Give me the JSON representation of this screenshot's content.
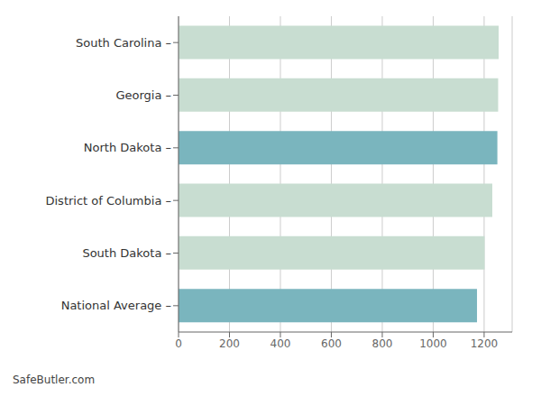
{
  "chart_data": {
    "type": "bar",
    "orientation": "horizontal",
    "categories": [
      "South Carolina –",
      "Georgia –",
      "North Dakota –",
      "District of Columbia –",
      "South Dakota –",
      "National Average –"
    ],
    "values": [
      1257,
      1255,
      1252,
      1232,
      1202,
      1172
    ],
    "colors": [
      "#c8ddd1",
      "#c8ddd1",
      "#7ab5be",
      "#c8ddd1",
      "#c8ddd1",
      "#7ab5be"
    ],
    "xlim": [
      0,
      1310
    ],
    "xticks": [
      0,
      200,
      400,
      600,
      800,
      1000,
      1200
    ],
    "grid": true,
    "annotations": [
      "SafeButler.com"
    ]
  }
}
